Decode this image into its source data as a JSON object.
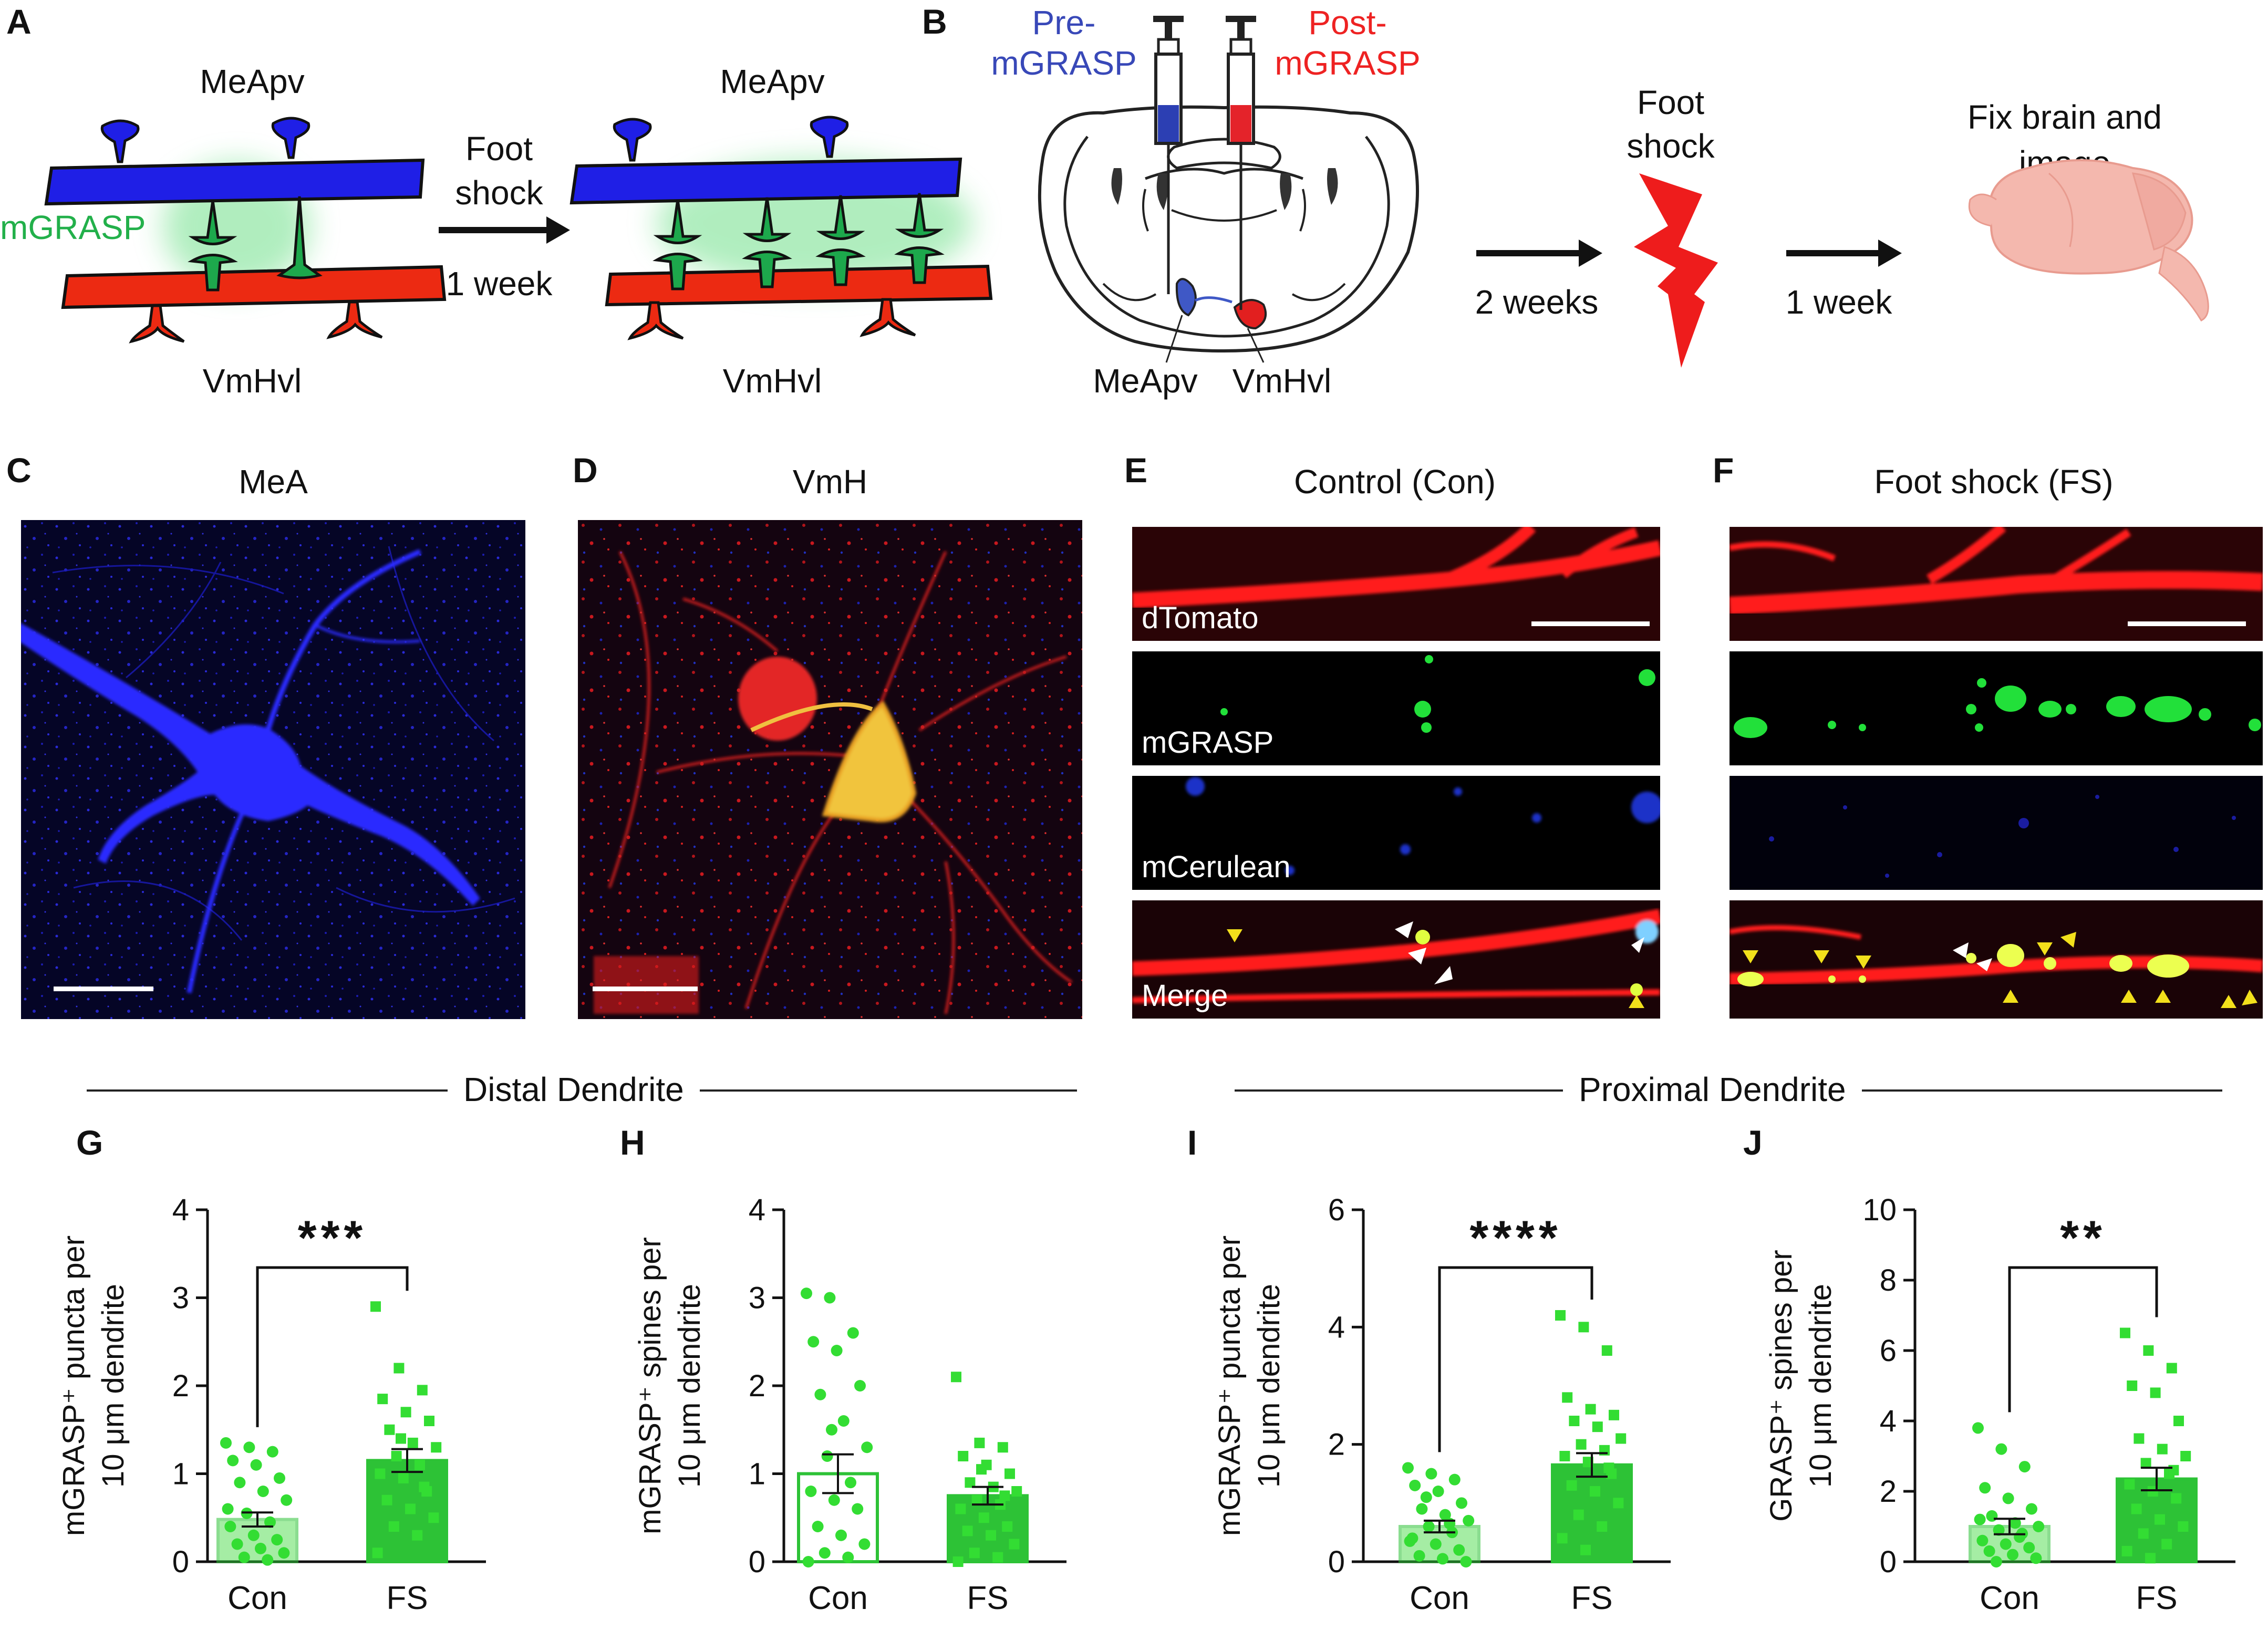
{
  "panel_letters": {
    "a": "A",
    "b": "B",
    "c": "C",
    "d": "D",
    "e": "E",
    "f": "F",
    "g": "G",
    "h": "H",
    "i": "I",
    "j": "J"
  },
  "panel_a": {
    "top_region": "MeApv",
    "bottom_region": "VmHvl",
    "mgrasp_label": "mGRASP",
    "arrow_text_1": "Foot",
    "arrow_text_2": "shock",
    "arrow_text_3": "1 week"
  },
  "panel_b": {
    "pre_label_1": "Pre-",
    "pre_label_2": "mGRASP",
    "post_label_1": "Post-",
    "post_label_2": "mGRASP",
    "left_region": "MeApv",
    "right_region": "VmHvl",
    "step1": "2 weeks",
    "shock_1": "Foot",
    "shock_2": "shock",
    "step2": "1 week",
    "fix_1": "Fix brain and",
    "fix_2": "image"
  },
  "panel_c": {
    "title": "MeA"
  },
  "panel_d": {
    "title": "VmH"
  },
  "panel_e": {
    "title": "Control (Con)",
    "channels": [
      "dTomato",
      "mGRASP",
      "mCerulean",
      "Merge"
    ]
  },
  "panel_f": {
    "title": "Foot shock (FS)"
  },
  "sections": {
    "distal": "Distal Dendrite",
    "proximal": "Proximal Dendrite"
  },
  "colors": {
    "pre": "#2233cc",
    "post": "#ee2222",
    "mgrasp": "#22b04a",
    "bar_fs": "#2dc236",
    "dot": "#33dd33",
    "arrow_yellow": "#f2e01b"
  },
  "chart_data": [
    {
      "id": "G",
      "type": "bar",
      "categories": [
        "Con",
        "FS"
      ],
      "values": [
        0.48,
        1.15
      ],
      "sem": [
        0.08,
        0.13
      ],
      "ylabel_line1": "mGRASP⁺ puncta per",
      "ylabel_line2": "10 μm dendrite",
      "ylim": [
        0,
        4
      ],
      "yticks": [
        "0",
        "1",
        "2",
        "3",
        "4"
      ],
      "significance": "***",
      "points": {
        "Con": [
          1.35,
          1.3,
          1.25,
          1.15,
          1.1,
          0.95,
          0.9,
          0.8,
          0.7,
          0.55,
          0.45,
          0.4,
          0.3,
          0.25,
          0.2,
          0.15,
          0.1,
          0.05,
          0.02,
          0.6
        ],
        "FS": [
          2.9,
          2.2,
          1.95,
          1.85,
          1.7,
          1.6,
          1.5,
          1.35,
          1.3,
          1.2,
          1.1,
          1.0,
          0.95,
          0.8,
          0.7,
          0.6,
          0.5,
          0.4,
          0.3,
          0.1,
          1.4,
          0.85
        ]
      }
    },
    {
      "id": "H",
      "type": "bar",
      "categories": [
        "Con",
        "FS"
      ],
      "values": [
        1.0,
        0.75
      ],
      "sem": [
        0.22,
        0.1
      ],
      "ylabel_line1": "mGRASP⁺ spines per",
      "ylabel_line2": "10 μm dendrite",
      "ylim": [
        0,
        4
      ],
      "yticks": [
        "0",
        "1",
        "2",
        "3",
        "4"
      ],
      "significance": "",
      "points": {
        "Con": [
          3.05,
          3.0,
          2.6,
          2.5,
          2.4,
          2.0,
          1.9,
          1.6,
          1.3,
          1.2,
          0.9,
          0.8,
          0.7,
          0.6,
          0.4,
          0.3,
          0.2,
          0.1,
          0.05,
          0.0,
          1.5
        ],
        "FS": [
          2.1,
          1.35,
          1.3,
          1.2,
          1.1,
          1.0,
          0.9,
          0.85,
          0.8,
          0.7,
          0.65,
          0.6,
          0.5,
          0.4,
          0.35,
          0.3,
          0.2,
          0.1,
          0.05,
          0.0,
          1.05,
          0.75
        ]
      }
    },
    {
      "id": "I",
      "type": "bar",
      "categories": [
        "Con",
        "FS"
      ],
      "values": [
        0.6,
        1.65
      ],
      "sem": [
        0.1,
        0.2
      ],
      "ylabel_line1": "mGRASP⁺ puncta per",
      "ylabel_line2": "10 μm dendrite",
      "ylim": [
        0,
        6
      ],
      "yticks": [
        "0",
        "2",
        "4",
        "6"
      ],
      "significance": "****",
      "points": {
        "Con": [
          1.6,
          1.5,
          1.4,
          1.3,
          1.2,
          1.0,
          0.9,
          0.8,
          0.7,
          0.6,
          0.5,
          0.4,
          0.3,
          0.2,
          0.1,
          0.05,
          0.0,
          1.1,
          0.65,
          0.35
        ],
        "FS": [
          4.2,
          4.0,
          3.6,
          2.8,
          2.6,
          2.5,
          2.4,
          2.3,
          2.1,
          2.0,
          1.9,
          1.8,
          1.7,
          1.5,
          1.3,
          1.2,
          1.0,
          0.8,
          0.6,
          0.4,
          0.2,
          1.6
        ]
      }
    },
    {
      "id": "J",
      "type": "bar",
      "categories": [
        "Con",
        "FS"
      ],
      "values": [
        1.0,
        2.35
      ],
      "sem": [
        0.22,
        0.32
      ],
      "ylabel_line1": "GRASP⁺ spines per",
      "ylabel_line2": "10 μm dendrite",
      "ylim": [
        0,
        10
      ],
      "yticks": [
        "0",
        "2",
        "4",
        "6",
        "8",
        "10"
      ],
      "significance": "**",
      "points": {
        "Con": [
          3.8,
          3.2,
          2.7,
          2.1,
          1.8,
          1.5,
          1.3,
          1.1,
          1.0,
          0.9,
          0.8,
          0.6,
          0.5,
          0.4,
          0.3,
          0.2,
          0.1,
          0.0,
          0.7,
          1.2
        ],
        "FS": [
          6.5,
          6.0,
          5.5,
          5.0,
          4.8,
          4.0,
          3.5,
          3.2,
          3.0,
          2.8,
          2.5,
          2.2,
          2.0,
          1.8,
          1.5,
          1.2,
          1.0,
          0.8,
          0.5,
          0.3,
          0.1,
          2.6
        ]
      }
    }
  ]
}
